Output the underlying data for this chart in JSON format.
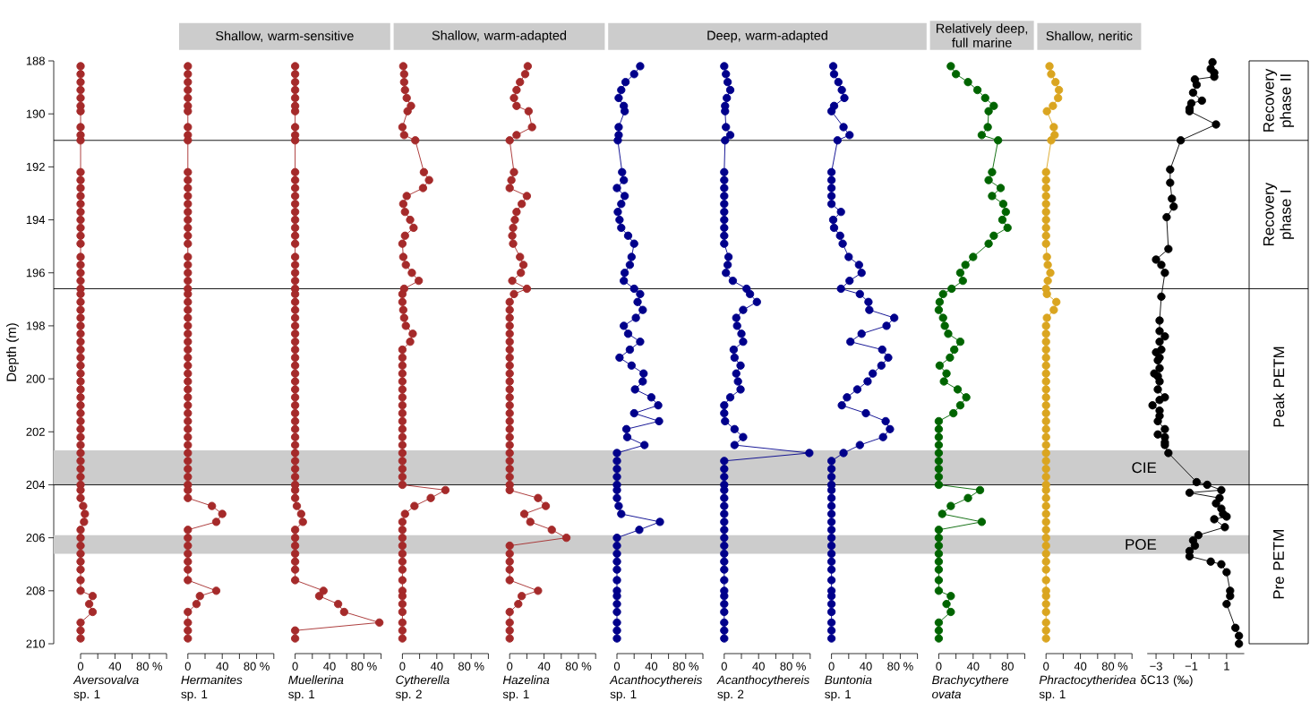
{
  "chart_data": [
    {
      "type": "line",
      "orientation": "horizontal",
      "marker": "circle",
      "line_style": "solid",
      "xlabel": "*Aversovalva* sp. 1",
      "ylabel": "Depth (m)",
      "xlim": [
        0,
        100
      ],
      "ylim": [
        210,
        188
      ],
      "xticks": [
        0,
        {
          "value": 20,
          "label": null
        },
        40,
        {
          "value": 60,
          "label": null
        },
        {
          "value": 80,
          "label": "80 %"
        },
        {
          "value": 100,
          "label": null
        }
      ],
      "yticks": [
        188,
        190,
        192,
        194,
        196,
        198,
        200,
        202,
        204,
        206,
        208,
        210
      ],
      "x": [
        188.2,
        188.5,
        188.8,
        189.1,
        189.4,
        189.7,
        189.9,
        190.5,
        190.8,
        191.0,
        192.2,
        192.5,
        192.8,
        193.1,
        193.4,
        193.7,
        194.0,
        194.3,
        194.6,
        194.9,
        195.4,
        195.7,
        196.0,
        196.3,
        196.6,
        196.8,
        197.1,
        197.4,
        197.7,
        198.0,
        198.3,
        198.6,
        198.9,
        199.2,
        199.5,
        199.8,
        200.1,
        200.4,
        200.7,
        201.0,
        201.3,
        201.6,
        201.9,
        202.2,
        202.5,
        202.8,
        203.1,
        203.4,
        203.7,
        204.0,
        204.2,
        204.5,
        204.8,
        205.1,
        205.4,
        205.7,
        206.0,
        206.3,
        206.6,
        206.9,
        207.2,
        207.6,
        208.0,
        208.2,
        208.5,
        208.8,
        209.2,
        209.5,
        209.8
      ],
      "series": [
        {
          "color": "#a52a2a",
          "values": [
            0,
            0,
            0,
            0,
            0,
            0,
            0,
            0,
            0,
            0,
            0,
            0,
            0,
            0,
            0,
            0,
            0,
            0,
            0,
            0,
            0,
            0,
            0,
            0,
            0,
            0,
            0,
            0,
            0,
            0,
            0,
            0,
            0,
            0,
            0,
            0,
            0,
            0,
            0,
            0,
            0,
            0,
            0,
            0,
            0,
            0,
            0,
            0,
            0,
            0,
            0,
            0,
            3,
            5,
            4,
            0,
            0,
            0,
            0,
            0,
            0,
            0,
            0,
            14,
            10,
            14,
            0,
            0,
            0
          ]
        }
      ],
      "ref_lines": [
        {
          "axis": "y",
          "value": 191.0
        },
        {
          "axis": "y",
          "value": 196.6
        },
        {
          "axis": "y",
          "value": 204.0
        }
      ],
      "bands": [
        {
          "axis": "y",
          "from": 202.7,
          "to": 204.0,
          "label": "CIE",
          "color": "#cccccc"
        },
        {
          "axis": "y",
          "from": 205.9,
          "to": 206.6,
          "label": "POE",
          "color": "#cccccc"
        }
      ],
      "annotations": [
        "Recovery phase II",
        "Recovery phase I",
        "Peak PETM",
        "Pre PETM"
      ]
    },
    {
      "type": "line",
      "orientation": "horizontal",
      "marker": "circle",
      "line_style": "solid",
      "tick_labels": "x",
      "title": "Shallow, warm-sensitive",
      "xlabel": "*Hermanites* sp. 1",
      "xlim": [
        0,
        100
      ],
      "ylim": [
        210,
        188
      ],
      "xticks": [
        0,
        {
          "value": 20,
          "label": null
        },
        40,
        {
          "value": 60,
          "label": null
        },
        {
          "value": 80,
          "label": "80 %"
        },
        {
          "value": 100,
          "label": null
        }
      ],
      "x": [
        188.2,
        188.5,
        188.8,
        189.1,
        189.4,
        189.7,
        189.9,
        190.5,
        190.8,
        191.0,
        192.2,
        192.5,
        192.8,
        193.1,
        193.4,
        193.7,
        194.0,
        194.3,
        194.6,
        194.9,
        195.4,
        195.7,
        196.0,
        196.3,
        196.6,
        196.8,
        197.1,
        197.4,
        197.7,
        198.0,
        198.3,
        198.6,
        198.9,
        199.2,
        199.5,
        199.8,
        200.1,
        200.4,
        200.7,
        201.0,
        201.3,
        201.6,
        201.9,
        202.2,
        202.5,
        202.8,
        203.1,
        203.4,
        203.7,
        204.0,
        204.2,
        204.5,
        204.8,
        205.1,
        205.4,
        205.7,
        206.0,
        206.3,
        206.6,
        206.9,
        207.2,
        207.6,
        208.0,
        208.2,
        208.5,
        208.8,
        209.2,
        209.5,
        209.8
      ],
      "series": [
        {
          "color": "#a52a2a",
          "values": [
            0,
            0,
            0,
            0,
            0,
            0,
            0,
            0,
            0,
            0,
            0,
            0,
            0,
            0,
            0,
            0,
            0,
            0,
            0,
            0,
            0,
            0,
            0,
            0,
            0,
            0,
            0,
            0,
            0,
            0,
            0,
            0,
            0,
            0,
            0,
            0,
            0,
            0,
            0,
            0,
            0,
            0,
            0,
            0,
            0,
            0,
            0,
            0,
            0,
            0,
            0,
            0,
            28,
            40,
            33,
            0,
            0,
            0,
            0,
            0,
            0,
            0,
            33,
            14,
            10,
            0,
            0,
            0,
            0
          ]
        }
      ]
    },
    {
      "type": "line",
      "orientation": "horizontal",
      "marker": "circle",
      "line_style": "solid",
      "tick_labels": "x",
      "xlabel": "*Muellerina* sp. 1",
      "xlim": [
        0,
        100
      ],
      "ylim": [
        210,
        188
      ],
      "xticks": [
        0,
        {
          "value": 20,
          "label": null
        },
        40,
        {
          "value": 60,
          "label": null
        },
        {
          "value": 80,
          "label": "80 %"
        },
        {
          "value": 100,
          "label": null
        }
      ],
      "x": [
        188.2,
        188.5,
        188.8,
        189.1,
        189.4,
        189.7,
        189.9,
        190.5,
        190.8,
        191.0,
        192.2,
        192.5,
        192.8,
        193.1,
        193.4,
        193.7,
        194.0,
        194.3,
        194.6,
        194.9,
        195.4,
        195.7,
        196.0,
        196.3,
        196.6,
        196.8,
        197.1,
        197.4,
        197.7,
        198.0,
        198.3,
        198.6,
        198.9,
        199.2,
        199.5,
        199.8,
        200.1,
        200.4,
        200.7,
        201.0,
        201.3,
        201.6,
        201.9,
        202.2,
        202.5,
        202.8,
        203.1,
        203.4,
        203.7,
        204.0,
        204.2,
        204.5,
        204.8,
        205.1,
        205.4,
        205.7,
        206.0,
        206.3,
        206.6,
        206.9,
        207.2,
        207.6,
        208.0,
        208.2,
        208.5,
        208.8,
        209.2,
        209.5,
        209.8
      ],
      "series": [
        {
          "color": "#a52a2a",
          "values": [
            0,
            0,
            0,
            0,
            0,
            0,
            0,
            0,
            0,
            0,
            0,
            0,
            0,
            0,
            0,
            0,
            0,
            0,
            0,
            0,
            0,
            0,
            0,
            0,
            0,
            0,
            0,
            0,
            0,
            0,
            0,
            0,
            0,
            0,
            0,
            0,
            0,
            0,
            0,
            0,
            0,
            0,
            0,
            0,
            0,
            0,
            0,
            0,
            0,
            0,
            0,
            0,
            2,
            7,
            9,
            0,
            0,
            0,
            0,
            0,
            0,
            0,
            33,
            28,
            50,
            57,
            98,
            0,
            0
          ]
        }
      ]
    },
    {
      "type": "line",
      "orientation": "horizontal",
      "marker": "circle",
      "line_style": "solid",
      "tick_labels": "x",
      "title": "Shallow, warm-adapted",
      "xlabel": "*Cytherella* sp. 2",
      "xlim": [
        0,
        100
      ],
      "ylim": [
        210,
        188
      ],
      "xticks": [
        0,
        {
          "value": 20,
          "label": null
        },
        40,
        {
          "value": 60,
          "label": null
        },
        {
          "value": 80,
          "label": "80 %"
        },
        {
          "value": 100,
          "label": null
        }
      ],
      "x": [
        188.2,
        188.5,
        188.8,
        189.1,
        189.4,
        189.7,
        189.9,
        190.5,
        190.8,
        191.0,
        192.2,
        192.5,
        192.8,
        193.1,
        193.4,
        193.7,
        194.0,
        194.3,
        194.6,
        194.9,
        195.4,
        195.7,
        196.0,
        196.3,
        196.6,
        196.8,
        197.1,
        197.4,
        197.7,
        198.0,
        198.3,
        198.6,
        198.9,
        199.2,
        199.5,
        199.8,
        200.1,
        200.4,
        200.7,
        201.0,
        201.3,
        201.6,
        201.9,
        202.2,
        202.5,
        202.8,
        203.1,
        203.4,
        203.7,
        204.0,
        204.2,
        204.5,
        204.8,
        205.1,
        205.4,
        205.7,
        206.0,
        206.3,
        206.6,
        206.9,
        207.2,
        207.6,
        208.0,
        208.2,
        208.5,
        208.8,
        209.2,
        209.5,
        209.8
      ],
      "series": [
        {
          "color": "#a52a2a",
          "values": [
            1,
            2,
            2,
            3,
            5,
            10,
            6,
            0,
            2,
            15,
            25,
            31,
            24,
            5,
            1,
            3,
            9,
            13,
            3,
            0,
            1,
            4,
            11,
            19,
            2,
            0,
            0,
            1,
            2,
            4,
            12,
            9,
            0,
            0,
            0,
            0,
            0,
            0,
            0,
            0,
            0,
            0,
            0,
            0,
            0,
            0,
            0,
            0,
            0,
            0,
            50,
            33,
            14,
            3,
            0,
            0,
            0,
            0,
            0,
            0,
            0,
            0,
            0,
            0,
            0,
            0,
            0,
            0,
            0
          ]
        }
      ]
    },
    {
      "type": "line",
      "orientation": "horizontal",
      "marker": "circle",
      "line_style": "solid",
      "tick_labels": "x",
      "xlabel": "*Hazelina* sp. 1",
      "xlim": [
        0,
        100
      ],
      "ylim": [
        210,
        188
      ],
      "xticks": [
        0,
        {
          "value": 20,
          "label": null
        },
        40,
        {
          "value": 60,
          "label": null
        },
        {
          "value": 80,
          "label": "80 %"
        },
        {
          "value": 100,
          "label": null
        }
      ],
      "x": [
        188.2,
        188.5,
        188.8,
        189.1,
        189.4,
        189.7,
        189.9,
        190.5,
        190.8,
        191.0,
        192.2,
        192.5,
        192.8,
        193.1,
        193.4,
        193.7,
        194.0,
        194.3,
        194.6,
        194.9,
        195.4,
        195.7,
        196.0,
        196.3,
        196.6,
        196.8,
        197.1,
        197.4,
        197.7,
        198.0,
        198.3,
        198.6,
        198.9,
        199.2,
        199.5,
        199.8,
        200.1,
        200.4,
        200.7,
        201.0,
        201.3,
        201.6,
        201.9,
        202.2,
        202.5,
        202.8,
        203.1,
        203.4,
        203.7,
        204.0,
        204.2,
        204.5,
        204.8,
        205.1,
        205.4,
        205.7,
        206.0,
        206.3,
        206.6,
        206.9,
        207.2,
        207.6,
        208.0,
        208.2,
        208.5,
        208.8,
        209.2,
        209.5,
        209.8
      ],
      "series": [
        {
          "color": "#a52a2a",
          "values": [
            21,
            18,
            12,
            8,
            5,
            8,
            22,
            26,
            8,
            0,
            5,
            2,
            0,
            20,
            14,
            8,
            6,
            4,
            3,
            4,
            12,
            16,
            13,
            3,
            20,
            5,
            0,
            0,
            0,
            0,
            0,
            0,
            0,
            0,
            0,
            0,
            0,
            0,
            0,
            0,
            0,
            0,
            0,
            0,
            0,
            0,
            0,
            0,
            0,
            0,
            0,
            33,
            42,
            17,
            24,
            49,
            66,
            0,
            0,
            0,
            0,
            0,
            33,
            14,
            10,
            0,
            0,
            0,
            0
          ]
        }
      ]
    },
    {
      "type": "line",
      "orientation": "horizontal",
      "marker": "circle",
      "line_style": "solid",
      "tick_labels": "x",
      "xlabel": "*Acanthocythereis* sp. 1",
      "xlim": [
        0,
        100
      ],
      "ylim": [
        210,
        188
      ],
      "xticks": [
        0,
        {
          "value": 20,
          "label": null
        },
        40,
        {
          "value": 60,
          "label": null
        },
        {
          "value": 80,
          "label": "80 %"
        },
        {
          "value": 100,
          "label": null
        }
      ],
      "x": [
        188.2,
        188.5,
        188.8,
        189.1,
        189.4,
        189.7,
        189.9,
        190.5,
        190.8,
        191.0,
        192.2,
        192.5,
        192.8,
        193.1,
        193.4,
        193.7,
        194.0,
        194.3,
        194.6,
        194.9,
        195.4,
        195.7,
        196.0,
        196.3,
        196.6,
        196.8,
        197.1,
        197.4,
        197.7,
        198.0,
        198.3,
        198.6,
        198.9,
        199.2,
        199.5,
        199.8,
        200.1,
        200.4,
        200.7,
        201.0,
        201.3,
        201.6,
        201.9,
        202.2,
        202.5,
        202.8,
        203.1,
        203.4,
        203.7,
        204.0,
        204.2,
        204.5,
        204.8,
        205.1,
        205.4,
        205.7,
        206.0,
        206.3,
        206.6,
        206.9,
        207.2,
        207.6,
        208.0,
        208.2,
        208.5,
        208.8,
        209.2,
        209.5,
        209.8
      ],
      "series": [
        {
          "color": "#00008b",
          "values": [
            27,
            20,
            10,
            5,
            2,
            8,
            9,
            2,
            2,
            1,
            6,
            8,
            0,
            9,
            5,
            1,
            3,
            5,
            13,
            20,
            17,
            15,
            9,
            8,
            20,
            27,
            24,
            30,
            22,
            8,
            13,
            27,
            15,
            3,
            17,
            31,
            30,
            21,
            40,
            48,
            20,
            49,
            11,
            12,
            32,
            0,
            0,
            0,
            0,
            0,
            0,
            0,
            2,
            5,
            50,
            26,
            0,
            0,
            0,
            0,
            0,
            0,
            0,
            0,
            0,
            0,
            0,
            0,
            0
          ]
        }
      ]
    },
    {
      "type": "line",
      "orientation": "horizontal",
      "marker": "circle",
      "line_style": "solid",
      "tick_labels": "x",
      "title": "Deep, warm-adapted",
      "xlabel": "*Acanthocythereis* sp. 2",
      "xlim": [
        0,
        100
      ],
      "ylim": [
        210,
        188
      ],
      "xticks": [
        0,
        {
          "value": 20,
          "label": null
        },
        40,
        {
          "value": 60,
          "label": null
        },
        {
          "value": 80,
          "label": "80 %"
        },
        {
          "value": 100,
          "label": null
        }
      ],
      "x": [
        188.2,
        188.5,
        188.8,
        189.1,
        189.4,
        189.7,
        189.9,
        190.5,
        190.8,
        191.0,
        192.2,
        192.5,
        192.8,
        193.1,
        193.4,
        193.7,
        194.0,
        194.3,
        194.6,
        194.9,
        195.4,
        195.7,
        196.0,
        196.3,
        196.6,
        196.8,
        197.1,
        197.4,
        197.7,
        198.0,
        198.3,
        198.6,
        198.9,
        199.2,
        199.5,
        199.8,
        200.1,
        200.4,
        200.7,
        201.0,
        201.3,
        201.6,
        201.9,
        202.2,
        202.5,
        202.8,
        203.1,
        203.4,
        203.7,
        204.0,
        204.2,
        204.5,
        204.8,
        205.1,
        205.4,
        205.7,
        206.0,
        206.3,
        206.6,
        206.9,
        207.2,
        207.6,
        208.0,
        208.2,
        208.5,
        208.8,
        209.2,
        209.5,
        209.8
      ],
      "series": [
        {
          "color": "#00008b",
          "values": [
            0,
            2,
            4,
            7,
            3,
            1,
            1,
            2,
            7,
            1,
            0,
            0,
            0,
            0,
            0,
            0,
            0,
            0,
            0,
            0,
            5,
            4,
            2,
            10,
            26,
            30,
            38,
            22,
            14,
            15,
            20,
            22,
            11,
            12,
            19,
            14,
            16,
            19,
            7,
            0,
            0,
            1,
            12,
            22,
            12,
            99,
            0,
            0,
            0,
            0,
            0,
            0,
            0,
            0,
            0,
            0,
            0,
            0,
            0,
            0,
            0,
            0,
            0,
            0,
            0,
            0,
            0,
            0,
            0
          ]
        }
      ]
    },
    {
      "type": "line",
      "orientation": "horizontal",
      "marker": "circle",
      "line_style": "solid",
      "tick_labels": "x",
      "xlabel": "*Buntonia* sp. 1",
      "xlim": [
        0,
        100
      ],
      "ylim": [
        210,
        188
      ],
      "xticks": [
        0,
        {
          "value": 20,
          "label": null
        },
        40,
        {
          "value": 60,
          "label": null
        },
        {
          "value": 80,
          "label": "80 %"
        },
        {
          "value": 100,
          "label": null
        }
      ],
      "x": [
        188.2,
        188.5,
        188.8,
        189.1,
        189.4,
        189.7,
        189.9,
        190.5,
        190.8,
        191.0,
        192.2,
        192.5,
        192.8,
        193.1,
        193.4,
        193.7,
        194.0,
        194.3,
        194.6,
        194.9,
        195.4,
        195.7,
        196.0,
        196.3,
        196.6,
        196.8,
        197.1,
        197.4,
        197.7,
        198.0,
        198.3,
        198.6,
        198.9,
        199.2,
        199.5,
        199.8,
        200.1,
        200.4,
        200.7,
        201.0,
        201.3,
        201.6,
        201.9,
        202.2,
        202.5,
        202.8,
        203.1,
        203.4,
        203.7,
        204.0,
        204.2,
        204.5,
        204.8,
        205.1,
        205.4,
        205.7,
        206.0,
        206.3,
        206.6,
        206.9,
        207.2,
        207.6,
        208.0,
        208.2,
        208.5,
        208.8,
        209.2,
        209.5,
        209.8
      ],
      "series": [
        {
          "color": "#00008b",
          "values": [
            2,
            3,
            8,
            12,
            15,
            3,
            0,
            14,
            21,
            7,
            0,
            0,
            0,
            0,
            0,
            11,
            2,
            3,
            10,
            13,
            20,
            32,
            35,
            21,
            11,
            33,
            43,
            44,
            73,
            64,
            35,
            22,
            59,
            66,
            58,
            48,
            42,
            30,
            18,
            12,
            40,
            63,
            68,
            60,
            33,
            14,
            0,
            0,
            0,
            0,
            0,
            0,
            0,
            0,
            0,
            0,
            0,
            0,
            0,
            0,
            0,
            0,
            0,
            0,
            0,
            0,
            0,
            0,
            0
          ]
        }
      ]
    },
    {
      "type": "line",
      "orientation": "horizontal",
      "marker": "circle",
      "line_style": "solid",
      "tick_labels": "x",
      "title": "Relatively deep, full marine",
      "xlabel": "*Brachycythere ovata*",
      "xlim": [
        0,
        100
      ],
      "ylim": [
        210,
        188
      ],
      "xticks": [
        0,
        {
          "value": 20,
          "label": null
        },
        40,
        {
          "value": 60,
          "label": null
        },
        80,
        {
          "value": 100,
          "label": null
        }
      ],
      "x": [
        188.2,
        188.5,
        188.8,
        189.1,
        189.4,
        189.7,
        189.9,
        190.5,
        190.8,
        191.0,
        192.2,
        192.5,
        192.8,
        193.1,
        193.4,
        193.7,
        194.0,
        194.3,
        194.6,
        194.9,
        195.4,
        195.7,
        196.0,
        196.3,
        196.6,
        196.8,
        197.1,
        197.4,
        197.7,
        198.0,
        198.3,
        198.6,
        198.9,
        199.2,
        199.5,
        199.8,
        200.1,
        200.4,
        200.7,
        201.0,
        201.3,
        201.6,
        201.9,
        202.2,
        202.5,
        202.8,
        203.1,
        203.4,
        203.7,
        204.0,
        204.2,
        204.5,
        204.8,
        205.1,
        205.4,
        205.7,
        206.0,
        206.3,
        206.6,
        206.9,
        207.2,
        207.6,
        208.0,
        208.2,
        208.5,
        208.8,
        209.2,
        209.5,
        209.8
      ],
      "series": [
        {
          "color": "#006400",
          "values": [
            14,
            20,
            34,
            45,
            54,
            64,
            58,
            57,
            50,
            69,
            62,
            58,
            72,
            62,
            75,
            78,
            74,
            80,
            64,
            58,
            40,
            31,
            25,
            28,
            15,
            5,
            1,
            0,
            5,
            7,
            11,
            25,
            18,
            13,
            1,
            9,
            6,
            22,
            32,
            25,
            17,
            0,
            0,
            0,
            0,
            0,
            0,
            0,
            0,
            0,
            48,
            34,
            14,
            4,
            50,
            0,
            0,
            0,
            0,
            0,
            0,
            0,
            0,
            14,
            9,
            14,
            0,
            0,
            0
          ]
        }
      ]
    },
    {
      "type": "line",
      "orientation": "horizontal",
      "marker": "circle",
      "line_style": "solid",
      "tick_labels": "x",
      "title": "Shallow, neritic",
      "xlabel": "*Phractocytheridea* sp. 1",
      "xlim": [
        0,
        100
      ],
      "ylim": [
        210,
        188
      ],
      "xticks": [
        0,
        {
          "value": 20,
          "label": null
        },
        40,
        {
          "value": 60,
          "label": null
        },
        {
          "value": 80,
          "label": "80 %"
        },
        {
          "value": 100,
          "label": null
        }
      ],
      "x": [
        188.2,
        188.5,
        188.8,
        189.1,
        189.4,
        189.7,
        189.9,
        190.5,
        190.8,
        191.0,
        192.2,
        192.5,
        192.8,
        193.1,
        193.4,
        193.7,
        194.0,
        194.3,
        194.6,
        194.9,
        195.4,
        195.7,
        196.0,
        196.3,
        196.6,
        196.8,
        197.1,
        197.4,
        197.7,
        198.0,
        198.3,
        198.6,
        198.9,
        199.2,
        199.5,
        199.8,
        200.1,
        200.4,
        200.7,
        201.0,
        201.3,
        201.6,
        201.9,
        202.2,
        202.5,
        202.8,
        203.1,
        203.4,
        203.7,
        204.0,
        204.2,
        204.5,
        204.8,
        205.1,
        205.4,
        205.7,
        206.0,
        206.3,
        206.6,
        206.9,
        207.2,
        207.6,
        208.0,
        208.2,
        208.5,
        208.8,
        209.2,
        209.5,
        209.8
      ],
      "series": [
        {
          "color": "#daa520",
          "values": [
            4,
            6,
            11,
            15,
            14,
            8,
            1,
            9,
            10,
            6,
            0,
            0,
            0,
            0,
            0,
            0,
            0,
            0,
            0,
            0,
            1,
            2,
            5,
            2,
            0,
            1,
            12,
            9,
            1,
            0,
            0,
            0,
            0,
            0,
            0,
            0,
            0,
            0,
            0,
            0,
            0,
            0,
            0,
            0,
            0,
            0,
            0,
            0,
            0,
            0,
            0,
            0,
            0,
            0,
            0,
            0,
            0,
            0,
            0,
            0,
            0,
            0,
            0,
            0,
            0,
            0,
            0,
            0,
            0
          ]
        }
      ]
    },
    {
      "type": "line",
      "orientation": "horizontal",
      "marker": "circle",
      "line_style": "solid",
      "tick_labels": "x",
      "xlabel": "δC13 (‰)",
      "xlim": [
        -3.5,
        2
      ],
      "ylim": [
        210,
        188
      ],
      "xticks": [
        {
          "value": -3,
          "label": "−3"
        },
        {
          "value": -2,
          "label": null
        },
        {
          "value": -1,
          "label": "−1"
        },
        {
          "value": 0,
          "label": null
        },
        1
      ],
      "x": [
        188.05,
        188.3,
        188.45,
        188.6,
        188.7,
        188.9,
        189.2,
        189.5,
        189.6,
        189.8,
        189.9,
        190.4,
        191.0,
        192.1,
        192.6,
        193.2,
        193.5,
        193.9,
        195.1,
        195.5,
        195.7,
        196.0,
        196.9,
        197.8,
        198.2,
        198.4,
        198.6,
        198.9,
        199.0,
        199.2,
        199.3,
        199.6,
        199.8,
        199.9,
        200.1,
        200.4,
        200.7,
        200.8,
        201.0,
        201.2,
        201.4,
        201.6,
        201.9,
        202.1,
        202.2,
        202.4,
        202.5,
        202.8,
        203.9,
        204.0,
        204.2,
        204.3,
        204.5,
        204.7,
        204.9,
        205.1,
        205.2,
        205.3,
        205.6,
        205.9,
        206.1,
        206.3,
        206.5,
        206.7,
        206.9,
        207.0,
        207.3,
        208.0,
        208.2,
        208.5,
        209.4,
        209.7,
        210.0
      ],
      "series": [
        {
          "color": "#000000",
          "values": [
            0.2,
            0.1,
            0.3,
            0.3,
            -0.8,
            -0.7,
            -0.9,
            -0.4,
            -1.0,
            -1.1,
            -1.1,
            0.4,
            -1.6,
            -2.2,
            -2.2,
            -2.1,
            -2.0,
            -2.4,
            -2.3,
            -3.0,
            -2.7,
            -2.5,
            -2.7,
            -2.8,
            -2.8,
            -2.5,
            -2.8,
            -2.7,
            -3.0,
            -2.8,
            -2.9,
            -2.8,
            -3.1,
            -2.9,
            -2.8,
            -2.9,
            -2.5,
            -2.8,
            -3.2,
            -2.8,
            -2.8,
            -2.9,
            -2.5,
            -2.9,
            -2.5,
            -2.5,
            -2.5,
            -2.3,
            -0.7,
            -0.1,
            0.7,
            -1.1,
            0.6,
            0.4,
            0.7,
            0.8,
            1.0,
            0.3,
            0.9,
            -0.6,
            -0.9,
            -0.8,
            -1.1,
            -1.1,
            0.1,
            0.7,
            1.0,
            1.2,
            1.2,
            1.0,
            1.5,
            1.7,
            1.7
          ]
        }
      ]
    }
  ]
}
